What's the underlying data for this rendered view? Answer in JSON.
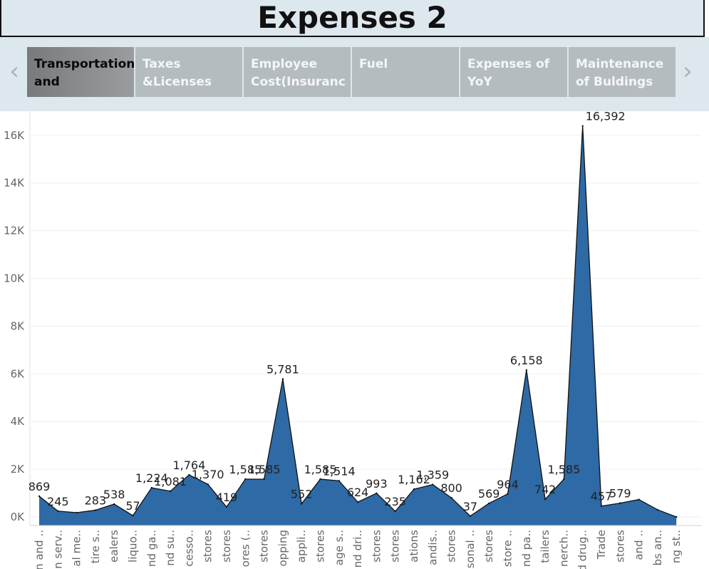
{
  "title": "Expenses 2",
  "nav": {
    "prev_icon": "chevron-left-icon",
    "next_icon": "chevron-right-icon",
    "prev_glyph": "‹",
    "next_glyph": "›"
  },
  "tabs": [
    {
      "label": "Transportation and",
      "active": true
    },
    {
      "label": "Taxes &Licenses",
      "active": false
    },
    {
      "label": "Employee Cost(Insuranc",
      "active": false
    },
    {
      "label": "Fuel",
      "active": false
    },
    {
      "label": "Expenses of YoY",
      "active": false
    },
    {
      "label": "Maintenance of Buldings",
      "active": false
    }
  ],
  "colors": {
    "fill": "#2e6aa5",
    "stroke": "#111111",
    "gridline": "#efefef",
    "tick_text": "#666666",
    "label_text": "#222222"
  },
  "chart_data": {
    "type": "area",
    "y_ticks": [
      0,
      2000,
      4000,
      6000,
      8000,
      10000,
      12000,
      14000,
      16000
    ],
    "y_tick_labels": [
      "0K",
      "2K",
      "4K",
      "6K",
      "8K",
      "10K",
      "12K",
      "14K",
      "16K"
    ],
    "ylim": [
      -350,
      17000
    ],
    "grid": true,
    "x": [
      "n and ..",
      "n serv..",
      "al me..",
      "tire s..",
      "ealers",
      "liquo..",
      "nd ga..",
      "nd su..",
      "cesso..",
      "stores",
      "stores",
      "ores (..",
      "stores",
      "opping",
      "appli..",
      "stores",
      "age s..",
      "nd dri..",
      "stores",
      "stores",
      "ations",
      "andis..",
      "stores",
      "sonal ..",
      "stores",
      "store ..",
      "nd pa..",
      "tailers",
      "nerch..",
      "d drug..",
      "Trade",
      "stores",
      "and ..",
      "bs an..",
      "ng st.."
    ],
    "values": [
      869,
      245,
      180,
      283,
      538,
      57,
      1224,
      1081,
      1764,
      1370,
      419,
      1585,
      1585,
      5781,
      552,
      1585,
      1514,
      624,
      993,
      235,
      1162,
      1359,
      800,
      37,
      569,
      964,
      6158,
      742,
      1585,
      16392,
      457,
      579,
      730,
      300,
      0
    ],
    "data_labels": [
      {
        "i": 0,
        "text": "869"
      },
      {
        "i": 1,
        "text": "245"
      },
      {
        "i": 3,
        "text": "283"
      },
      {
        "i": 4,
        "text": "538"
      },
      {
        "i": 5,
        "text": "57"
      },
      {
        "i": 6,
        "text": "1,224"
      },
      {
        "i": 7,
        "text": "1,081"
      },
      {
        "i": 8,
        "text": "1,764"
      },
      {
        "i": 9,
        "text": "1,370"
      },
      {
        "i": 10,
        "text": "419"
      },
      {
        "i": 11,
        "text": "1,585"
      },
      {
        "i": 12,
        "text": "1,585"
      },
      {
        "i": 13,
        "text": "5,781"
      },
      {
        "i": 14,
        "text": "552"
      },
      {
        "i": 15,
        "text": "1,585"
      },
      {
        "i": 16,
        "text": "1,514"
      },
      {
        "i": 17,
        "text": "624"
      },
      {
        "i": 18,
        "text": "993"
      },
      {
        "i": 19,
        "text": "235"
      },
      {
        "i": 20,
        "text": "1,162"
      },
      {
        "i": 21,
        "text": "1,359"
      },
      {
        "i": 22,
        "text": "800"
      },
      {
        "i": 23,
        "text": "37"
      },
      {
        "i": 24,
        "text": "569"
      },
      {
        "i": 25,
        "text": "964"
      },
      {
        "i": 26,
        "text": "6,158"
      },
      {
        "i": 27,
        "text": "742"
      },
      {
        "i": 28,
        "text": "1,585"
      },
      {
        "i": 29,
        "text": "16,392"
      },
      {
        "i": 30,
        "text": "457"
      },
      {
        "i": 31,
        "text": "579"
      }
    ]
  }
}
